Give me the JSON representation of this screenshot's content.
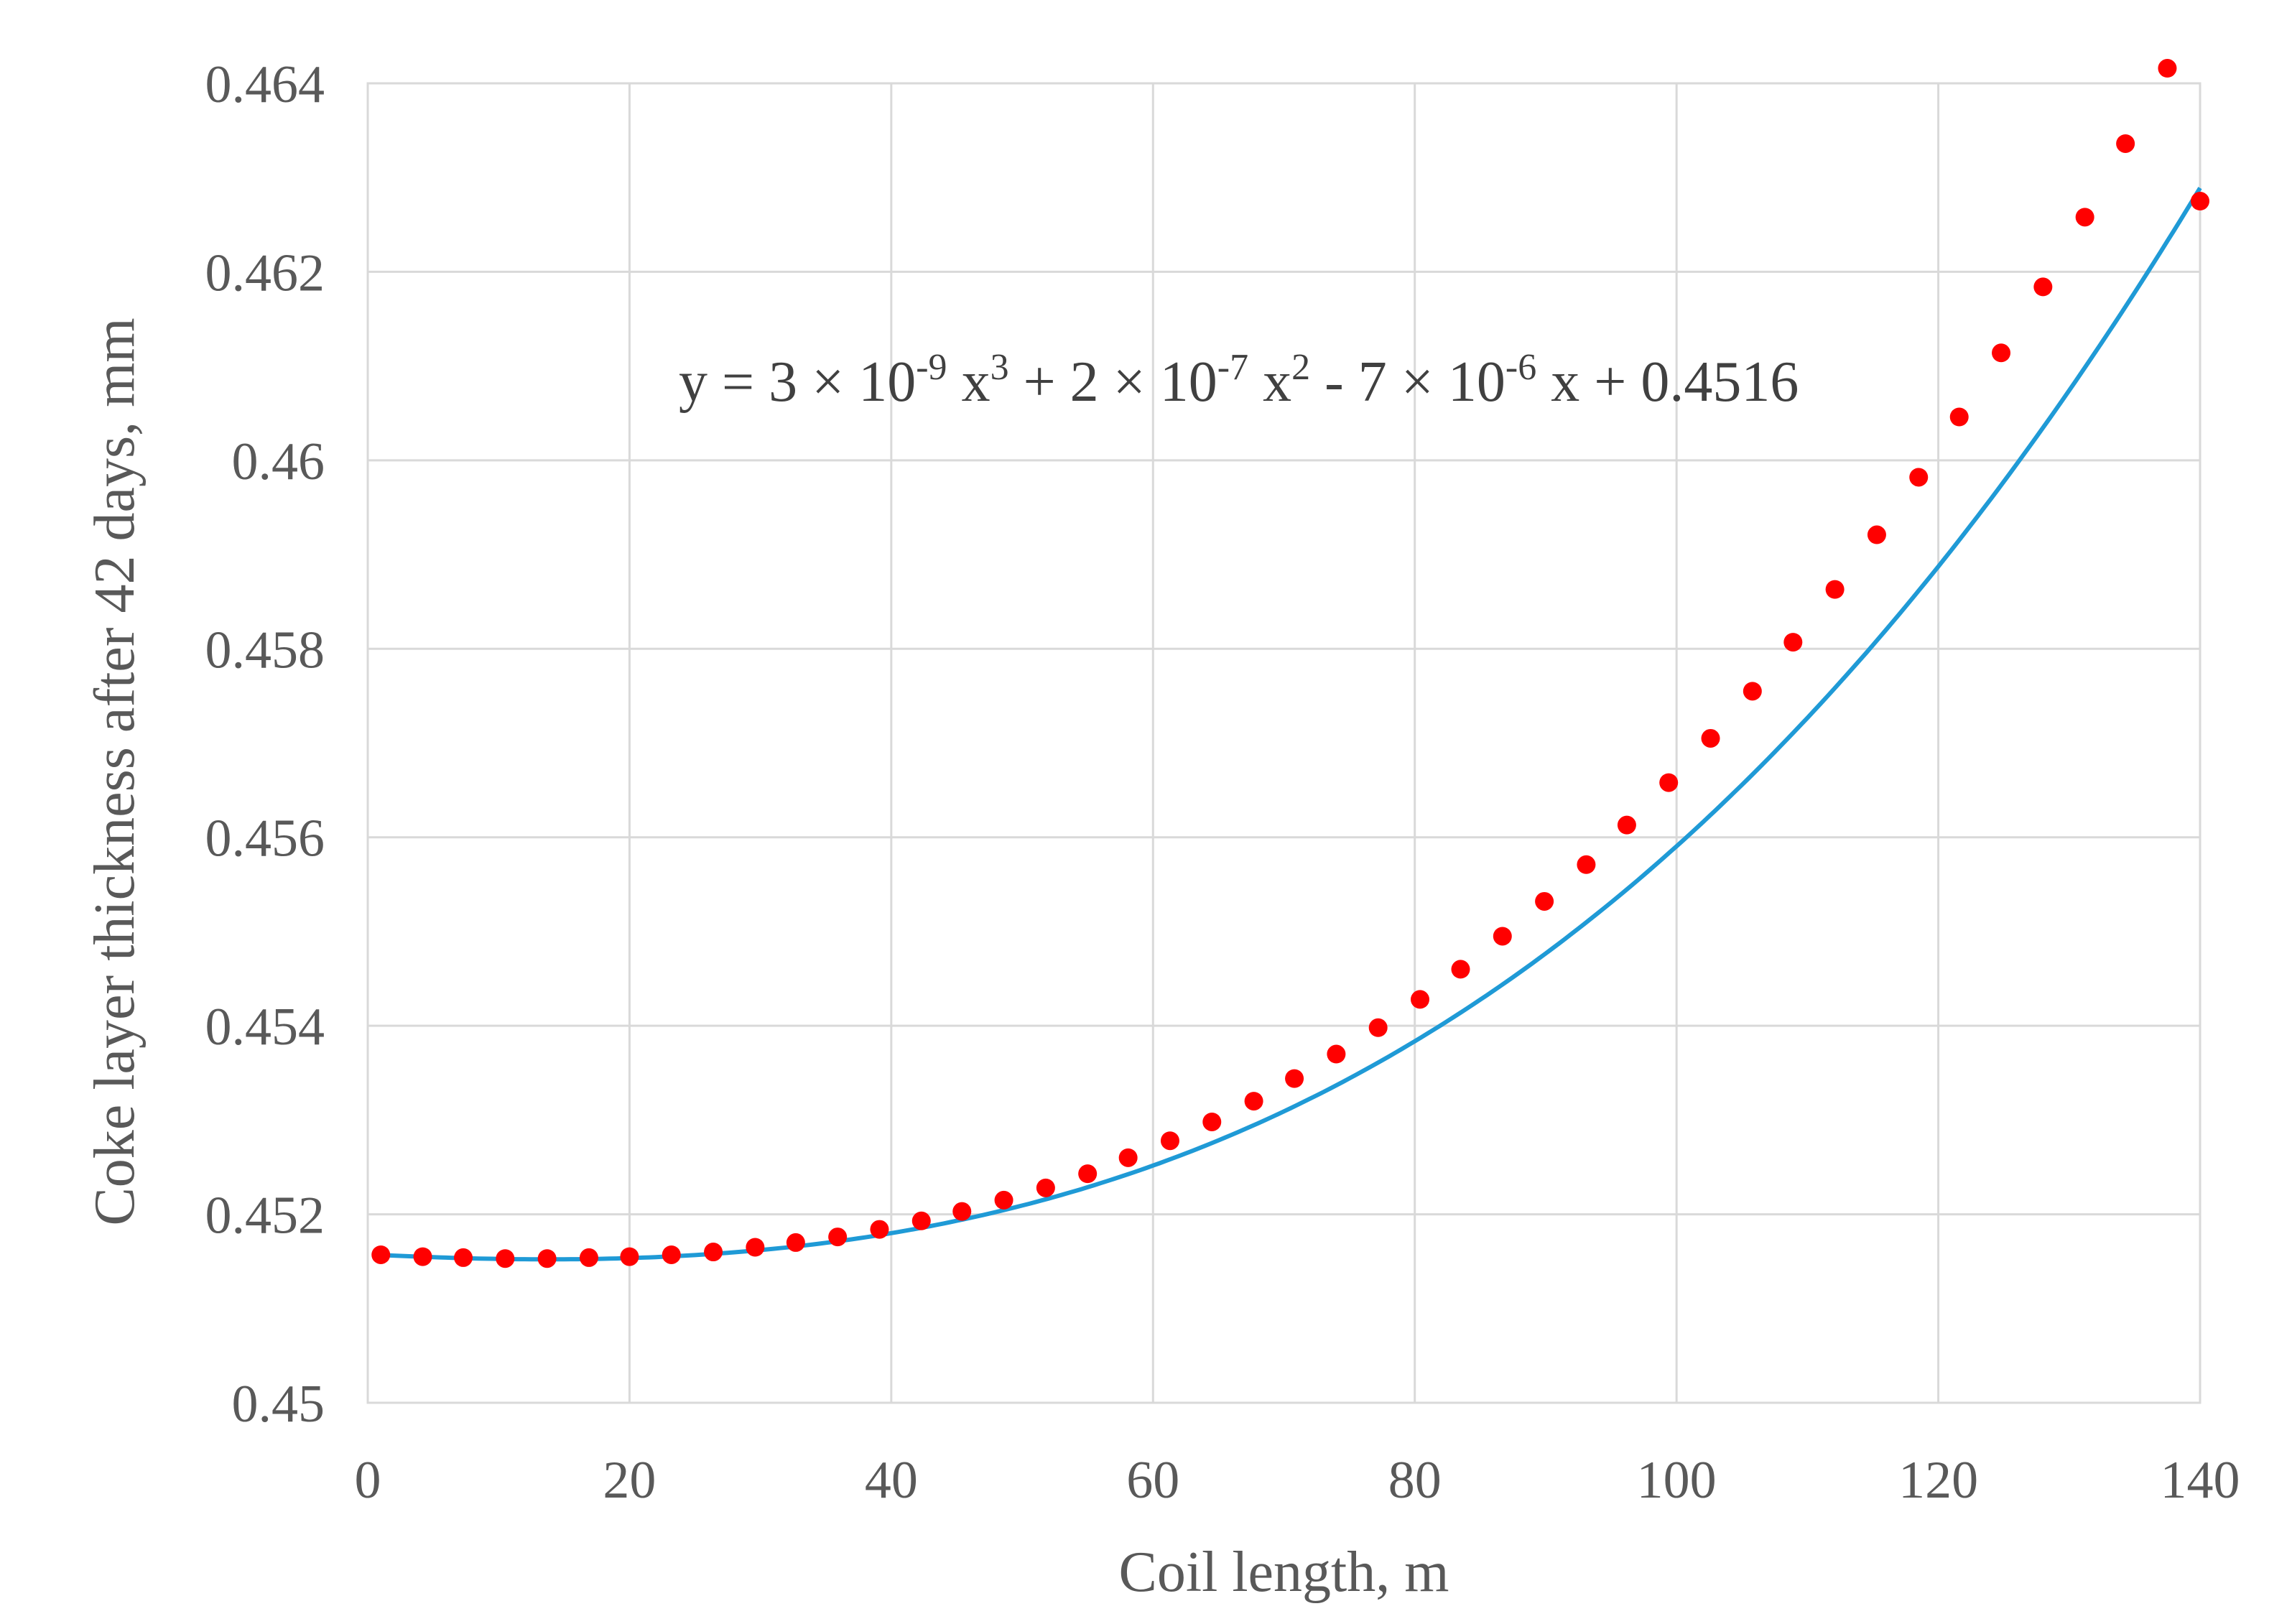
{
  "chart_data": {
    "type": "scatter",
    "title": "",
    "xlabel": "Coil length, m",
    "ylabel": "Coke layer thickness after 42 days, mm",
    "xlim": [
      0,
      140
    ],
    "ylim": [
      0.45,
      0.464
    ],
    "x_ticks": [
      0,
      20,
      40,
      60,
      80,
      100,
      120,
      140
    ],
    "x_tick_labels": [
      "0",
      "20",
      "40",
      "60",
      "80",
      "100",
      "120",
      "140"
    ],
    "y_ticks": [
      0.45,
      0.452,
      0.454,
      0.456,
      0.458,
      0.46,
      0.462,
      0.464
    ],
    "y_tick_labels": [
      "0.45",
      "0.452",
      "0.454",
      "0.456",
      "0.458",
      "0.46",
      "0.462",
      "0.464"
    ],
    "grid": true,
    "legend": "none",
    "annotation": {
      "text": "y = 3 × 10-9 x3 + 2 × 10-7 x2 - 7 × 10-6 x + 0.4516",
      "parts": [
        {
          "t": "y = 3 × 10",
          "sup": false
        },
        {
          "t": "-9",
          "sup": true
        },
        {
          "t": " x",
          "sup": false
        },
        {
          "t": "3",
          "sup": true
        },
        {
          "t": " + 2 × 10",
          "sup": false
        },
        {
          "t": "-7",
          "sup": true
        },
        {
          "t": " x",
          "sup": false
        },
        {
          "t": "2",
          "sup": true
        },
        {
          "t": " - 7 × 10",
          "sup": false
        },
        {
          "t": "-6",
          "sup": true
        },
        {
          "t": " x + 0.4516",
          "sup": false
        }
      ]
    },
    "trendline": {
      "type": "polynomial",
      "order": 3,
      "coefficients": [
        3.1e-09,
        1.94e-07,
        -7.1e-06,
        0.451575
      ],
      "color": "#1f9ad6"
    },
    "series": [
      {
        "name": "Coke layer thickness",
        "color": "#ff0000",
        "x": [
          1.0,
          4.2,
          7.3,
          10.5,
          13.7,
          16.9,
          20.0,
          23.2,
          26.4,
          29.6,
          32.7,
          35.9,
          39.1,
          42.3,
          45.4,
          48.6,
          51.8,
          55.0,
          58.1,
          61.3,
          64.5,
          67.7,
          70.8,
          74.0,
          77.2,
          80.4,
          83.5,
          86.7,
          89.9,
          93.1,
          96.2,
          99.4,
          102.6,
          105.8,
          108.9,
          112.1,
          115.3,
          118.5,
          121.6,
          124.8,
          128.0,
          131.2,
          134.3,
          137.5,
          140.0
        ],
        "y": [
          0.45157,
          0.45155,
          0.45154,
          0.45153,
          0.45153,
          0.45154,
          0.45155,
          0.45157,
          0.4516,
          0.45165,
          0.4517,
          0.45176,
          0.45184,
          0.45193,
          0.45203,
          0.45215,
          0.45228,
          0.45243,
          0.4526,
          0.45278,
          0.45298,
          0.4532,
          0.45344,
          0.4537,
          0.45398,
          0.45428,
          0.4546,
          0.45495,
          0.45532,
          0.45571,
          0.45613,
          0.45658,
          0.45705,
          0.45755,
          0.45807,
          0.45863,
          0.45921,
          0.45982,
          0.46046,
          0.46114,
          0.46184,
          0.46258,
          0.46336,
          0.46416,
          0.46275
        ]
      }
    ]
  }
}
